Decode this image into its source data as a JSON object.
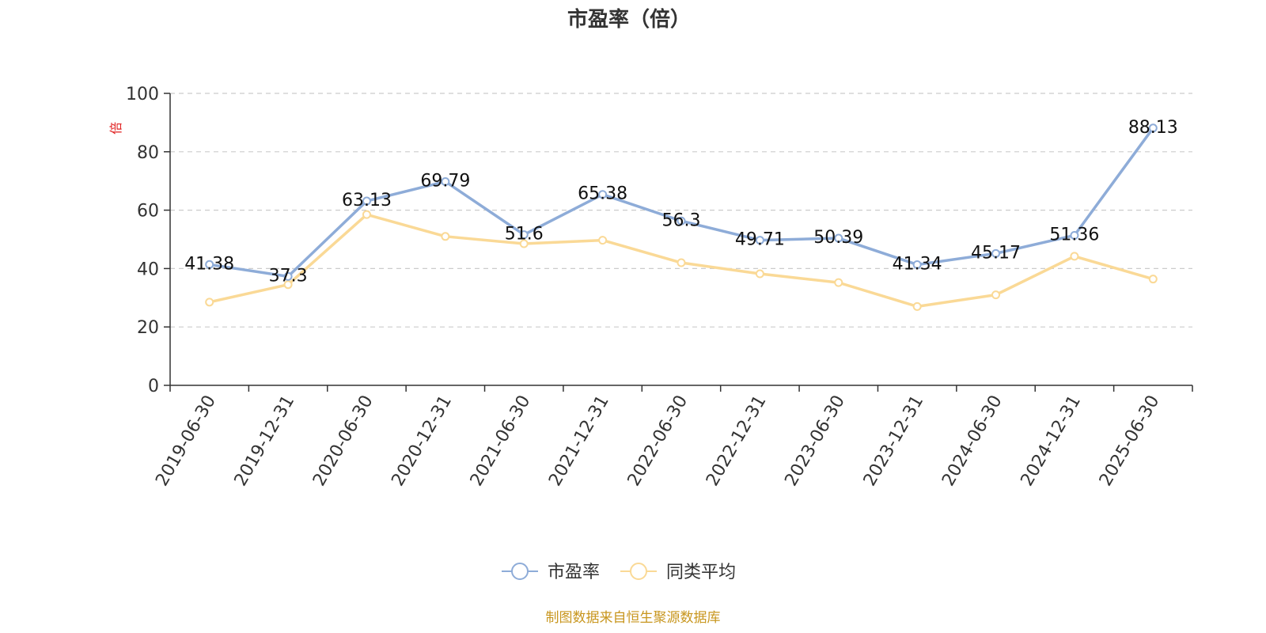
{
  "chart_data": {
    "type": "line",
    "title": "市盈率（倍）",
    "ylabel": "倍",
    "ylim": [
      0,
      100
    ],
    "yticks": [
      0,
      20,
      40,
      60,
      80,
      100
    ],
    "grid": true,
    "legend_position": "bottom",
    "categories": [
      "2019-06-30",
      "2019-12-31",
      "2020-06-30",
      "2020-12-31",
      "2021-06-30",
      "2021-12-31",
      "2022-06-30",
      "2022-12-31",
      "2023-06-30",
      "2023-12-31",
      "2024-06-30",
      "2024-12-31",
      "2025-06-30"
    ],
    "series": [
      {
        "name": "市盈率",
        "color": "#8eacd8",
        "show_labels": true,
        "values": [
          41.38,
          37.3,
          63.13,
          69.79,
          51.6,
          65.38,
          56.3,
          49.71,
          50.39,
          41.34,
          45.17,
          51.36,
          88.13
        ],
        "labels": [
          "41.38",
          "37.3",
          "63.13",
          "69.79",
          "51.6",
          "65.38",
          "56.3",
          "49.71",
          "50.39",
          "41.34",
          "45.17",
          "51.36",
          "88.13"
        ]
      },
      {
        "name": "同类平均",
        "color": "#fad996",
        "show_labels": false,
        "values": [
          28.5,
          34.5,
          58.5,
          51.0,
          48.5,
          49.7,
          42.0,
          38.2,
          35.2,
          27.0,
          31.0,
          44.2,
          36.4
        ]
      }
    ],
    "source": "制图数据来自恒生聚源数据库"
  }
}
